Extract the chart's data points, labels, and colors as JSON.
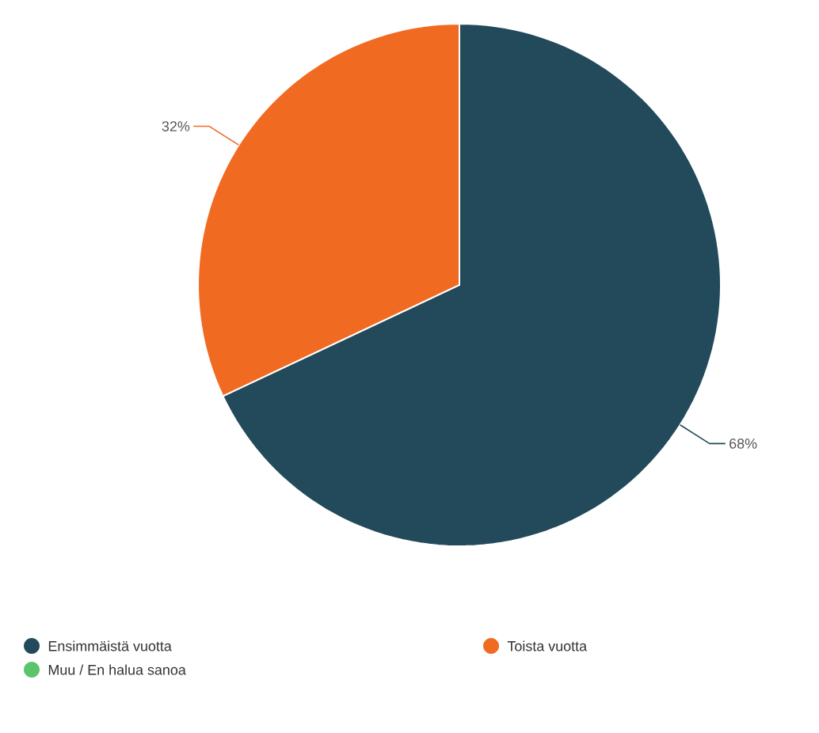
{
  "chart_data": {
    "type": "pie",
    "categories": [
      "Ensimmäistä vuotta",
      "Toista vuotta",
      "Muu / En halua sanoa"
    ],
    "values": [
      68,
      32,
      0
    ],
    "colors": [
      "#234a5a",
      "#f06a22",
      "#5cc46a"
    ],
    "value_labels": [
      "68%",
      "32%",
      null
    ],
    "legend": "bottom"
  }
}
